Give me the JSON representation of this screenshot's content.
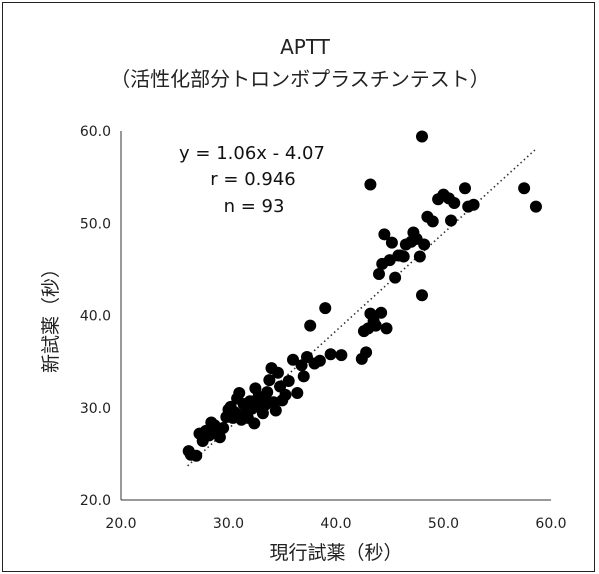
{
  "chart_data": {
    "type": "scatter",
    "title": "APTT",
    "subtitle": "（活性化部分トロンボプラスチンテスト）",
    "xlabel": "現行試薬（秒）",
    "ylabel": "新試薬（秒）",
    "xlim": [
      20,
      60
    ],
    "ylim": [
      20,
      60
    ],
    "xticks": [
      20,
      30,
      40,
      50,
      60
    ],
    "yticks": [
      20,
      30,
      40,
      50,
      60
    ],
    "xtick_labels": [
      "20.0",
      "30.0",
      "40.0",
      "50.0",
      "60.0"
    ],
    "ytick_labels": [
      "20.0",
      "30.0",
      "40.0",
      "50.0",
      "60.0"
    ],
    "grid": false,
    "annotations": [
      "y = 1.06x - 4.07",
      "r = 0.946",
      "n = 93"
    ],
    "trendline": {
      "slope": 1.06,
      "intercept": -4.07,
      "style": "dotted",
      "x_range": [
        26.2,
        58.5
      ]
    },
    "marker_color": "#000000",
    "series": [
      {
        "x": [
          26.3,
          26.5,
          27.0,
          27.3,
          27.6,
          27.9,
          28.2,
          28.4,
          28.7,
          29.0,
          29.2,
          29.5,
          29.8,
          30.0,
          30.2,
          30.4,
          30.6,
          30.8,
          31.0,
          31.2,
          31.4,
          31.6,
          31.8,
          32.0,
          32.2,
          32.4,
          32.6,
          32.8,
          33.0,
          33.2,
          33.4,
          33.6,
          33.8,
          34.0,
          34.2,
          34.4,
          34.6,
          34.8,
          35.0,
          35.3,
          35.6,
          36.0,
          36.4,
          36.8,
          37.0,
          37.3,
          37.6,
          38.0,
          38.5,
          39.0,
          39.5,
          40.5,
          42.4,
          42.6,
          42.8,
          43.0,
          43.2,
          43.5,
          43.7,
          44.0,
          44.2,
          44.3,
          44.5,
          44.7,
          45.0,
          45.2,
          45.5,
          45.8,
          46.0,
          46.3,
          46.5,
          47.0,
          47.2,
          47.5,
          47.8,
          48.0,
          48.2,
          48.5,
          49.0,
          49.5,
          50.0,
          50.5,
          50.7,
          51.0,
          52.0,
          52.3,
          52.8,
          57.5,
          58.6,
          32.5,
          33.5,
          43.2,
          48.0
        ],
        "y": [
          25.3,
          24.9,
          24.8,
          27.2,
          26.4,
          27.5,
          27.0,
          28.4,
          28.1,
          27.4,
          26.8,
          27.8,
          29.0,
          29.8,
          30.1,
          28.9,
          29.5,
          31.0,
          31.6,
          28.7,
          30.4,
          29.6,
          28.9,
          30.7,
          29.9,
          28.3,
          30.8,
          31.2,
          30.0,
          29.4,
          30.3,
          31.7,
          33.0,
          34.3,
          30.6,
          29.7,
          33.8,
          32.3,
          30.8,
          31.4,
          32.9,
          35.2,
          31.6,
          34.6,
          33.4,
          35.5,
          38.9,
          34.8,
          35.1,
          40.8,
          35.8,
          35.7,
          35.3,
          38.3,
          36.0,
          38.6,
          40.2,
          39.4,
          38.9,
          44.5,
          40.3,
          45.6,
          48.8,
          38.6,
          46.0,
          47.9,
          44.1,
          46.5,
          46.5,
          46.4,
          47.7,
          48.0,
          49.0,
          48.3,
          46.4,
          42.2,
          47.7,
          50.7,
          50.2,
          52.6,
          53.1,
          52.7,
          50.3,
          52.2,
          53.8,
          51.8,
          52.0,
          53.8,
          51.8,
          32.1,
          30.9,
          54.2,
          59.4
        ]
      }
    ]
  }
}
